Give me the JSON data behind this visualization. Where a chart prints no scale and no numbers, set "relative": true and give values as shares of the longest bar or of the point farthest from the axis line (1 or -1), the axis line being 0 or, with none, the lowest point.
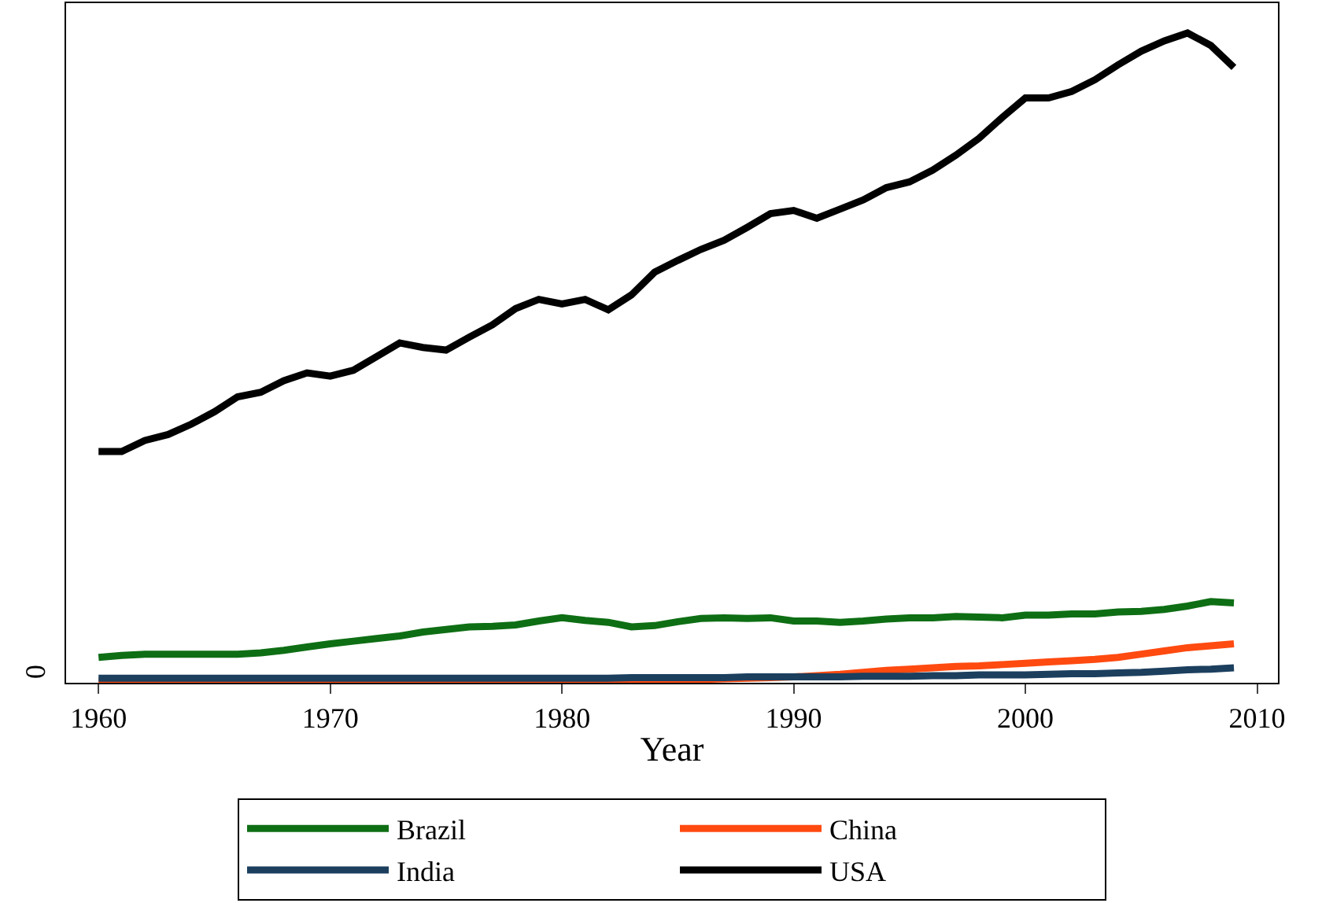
{
  "chart_data": {
    "type": "line",
    "relative": true,
    "xlabel": "Year",
    "x": [
      1960,
      1961,
      1962,
      1963,
      1964,
      1965,
      1966,
      1967,
      1968,
      1969,
      1970,
      1971,
      1972,
      1973,
      1974,
      1975,
      1976,
      1977,
      1978,
      1979,
      1980,
      1981,
      1982,
      1983,
      1984,
      1985,
      1986,
      1987,
      1988,
      1989,
      1990,
      1991,
      1992,
      1993,
      1994,
      1995,
      1996,
      1997,
      1998,
      1999,
      2000,
      2001,
      2002,
      2003,
      2004,
      2005,
      2006,
      2007,
      2008,
      2009
    ],
    "xlim": [
      1958.6,
      2010.9
    ],
    "xticks": [
      1960,
      1970,
      1980,
      1990,
      2000,
      2010
    ],
    "annotations": [
      "0"
    ],
    "grid": false,
    "legend": "bottom",
    "line_style": "solid",
    "marker": "none",
    "series": [
      {
        "name": "Brazil",
        "color": "#0e6e14",
        "values": [
          0.039,
          0.042,
          0.044,
          0.044,
          0.044,
          0.044,
          0.044,
          0.046,
          0.05,
          0.055,
          0.06,
          0.064,
          0.068,
          0.072,
          0.078,
          0.082,
          0.086,
          0.087,
          0.089,
          0.095,
          0.1,
          0.096,
          0.093,
          0.086,
          0.088,
          0.094,
          0.099,
          0.1,
          0.099,
          0.1,
          0.095,
          0.095,
          0.093,
          0.095,
          0.098,
          0.1,
          0.1,
          0.102,
          0.101,
          0.1,
          0.104,
          0.104,
          0.106,
          0.106,
          0.109,
          0.11,
          0.113,
          0.118,
          0.125,
          0.123
        ]
      },
      {
        "name": "China",
        "color": "#ff4a10",
        "values": [
          0.002,
          0.001,
          0.001,
          0.001,
          0.001,
          0.001,
          0.001,
          0.001,
          0.001,
          0.001,
          0.001,
          0.001,
          0.001,
          0.001,
          0.001,
          0.002,
          0.002,
          0.002,
          0.002,
          0.002,
          0.003,
          0.003,
          0.003,
          0.004,
          0.004,
          0.005,
          0.005,
          0.006,
          0.007,
          0.008,
          0.009,
          0.011,
          0.013,
          0.016,
          0.019,
          0.021,
          0.023,
          0.025,
          0.026,
          0.028,
          0.03,
          0.032,
          0.034,
          0.036,
          0.039,
          0.044,
          0.049,
          0.054,
          0.057,
          0.06
        ]
      },
      {
        "name": "India",
        "color": "#1c3f5e",
        "values": [
          0.007,
          0.007,
          0.007,
          0.007,
          0.007,
          0.007,
          0.007,
          0.007,
          0.007,
          0.007,
          0.007,
          0.007,
          0.007,
          0.007,
          0.007,
          0.007,
          0.007,
          0.007,
          0.007,
          0.007,
          0.007,
          0.007,
          0.007,
          0.008,
          0.008,
          0.008,
          0.008,
          0.008,
          0.009,
          0.009,
          0.009,
          0.009,
          0.009,
          0.01,
          0.01,
          0.01,
          0.011,
          0.011,
          0.012,
          0.012,
          0.012,
          0.013,
          0.014,
          0.014,
          0.015,
          0.016,
          0.018,
          0.02,
          0.021,
          0.023
        ]
      },
      {
        "name": "USA",
        "color": "#000000",
        "values": [
          0.356,
          0.356,
          0.373,
          0.382,
          0.398,
          0.417,
          0.44,
          0.447,
          0.465,
          0.477,
          0.472,
          0.481,
          0.502,
          0.523,
          0.516,
          0.512,
          0.532,
          0.551,
          0.576,
          0.59,
          0.583,
          0.59,
          0.574,
          0.597,
          0.632,
          0.65,
          0.667,
          0.681,
          0.701,
          0.722,
          0.727,
          0.715,
          0.729,
          0.743,
          0.762,
          0.771,
          0.789,
          0.812,
          0.838,
          0.87,
          0.9,
          0.9,
          0.91,
          0.928,
          0.951,
          0.972,
          0.988,
          1.0,
          0.981,
          0.947
        ]
      }
    ]
  }
}
